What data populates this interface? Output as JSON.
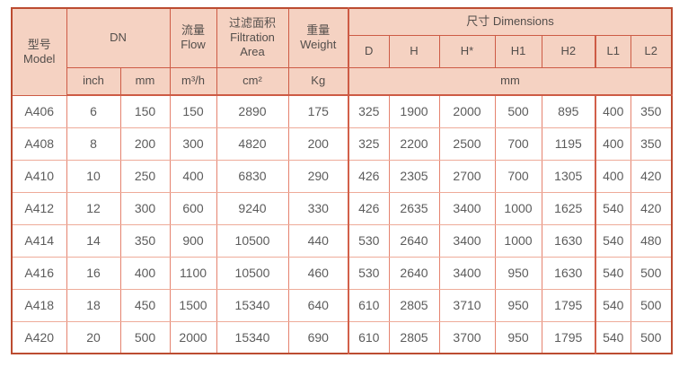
{
  "colors": {
    "header_bg": "#f5d2c2",
    "border_strong": "#cd5b45",
    "border_outer": "#bc4c31",
    "grid_vertical": "#e5836f",
    "grid_horizontal": "#eeab99",
    "header_text": "#534e4b",
    "data_text": "#5c5c5c"
  },
  "table": {
    "header": {
      "model_zh": "型号",
      "model_en": "Model",
      "dn_label": "DN",
      "flow_zh": "流量",
      "flow_en": "Flow",
      "filtration_zh": "过滤面积",
      "filtration_en_line1": "Filtration",
      "filtration_en_line2": "Area",
      "weight_zh": "重量",
      "weight_en": "Weight",
      "dimensions_label": "尺寸 Dimensions",
      "dim_columns": [
        "D",
        "H",
        "H*",
        "H1",
        "H2",
        "L1",
        "L2"
      ],
      "units": {
        "inch": "inch",
        "mm": "mm",
        "flow": "m³/h",
        "area": "cm²",
        "weight": "Kg",
        "dimensions": "mm"
      }
    },
    "rows": [
      {
        "model": "A406",
        "inch": 6,
        "mm": 150,
        "flow": 150,
        "area": 2890,
        "weight": 175,
        "dims": [
          325,
          1900,
          2000,
          500,
          895,
          400,
          350
        ]
      },
      {
        "model": "A408",
        "inch": 8,
        "mm": 200,
        "flow": 300,
        "area": 4820,
        "weight": 200,
        "dims": [
          325,
          2200,
          2500,
          700,
          1195,
          400,
          350
        ]
      },
      {
        "model": "A410",
        "inch": 10,
        "mm": 250,
        "flow": 400,
        "area": 6830,
        "weight": 290,
        "dims": [
          426,
          2305,
          2700,
          700,
          1305,
          400,
          420
        ]
      },
      {
        "model": "A412",
        "inch": 12,
        "mm": 300,
        "flow": 600,
        "area": 9240,
        "weight": 330,
        "dims": [
          426,
          2635,
          3400,
          1000,
          1625,
          540,
          420
        ]
      },
      {
        "model": "A414",
        "inch": 14,
        "mm": 350,
        "flow": 900,
        "area": 10500,
        "weight": 440,
        "dims": [
          530,
          2640,
          3400,
          1000,
          1630,
          540,
          480
        ]
      },
      {
        "model": "A416",
        "inch": 16,
        "mm": 400,
        "flow": 1100,
        "area": 10500,
        "weight": 460,
        "dims": [
          530,
          2640,
          3400,
          950,
          1630,
          540,
          500
        ]
      },
      {
        "model": "A418",
        "inch": 18,
        "mm": 450,
        "flow": 1500,
        "area": 15340,
        "weight": 640,
        "dims": [
          610,
          2805,
          3710,
          950,
          1795,
          540,
          500
        ]
      },
      {
        "model": "A420",
        "inch": 20,
        "mm": 500,
        "flow": 2000,
        "area": 15340,
        "weight": 690,
        "dims": [
          610,
          2805,
          3700,
          950,
          1795,
          540,
          500
        ]
      }
    ]
  }
}
